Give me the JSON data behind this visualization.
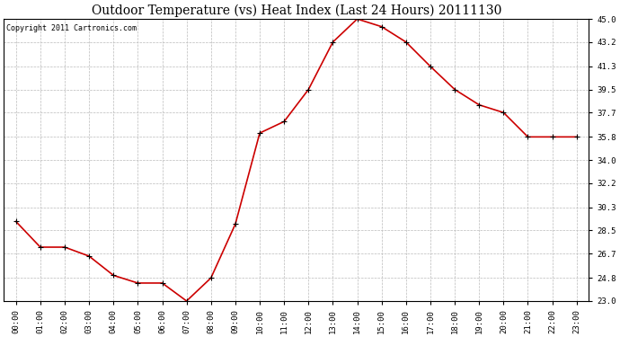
{
  "title": "Outdoor Temperature (vs) Heat Index (Last 24 Hours) 20111130",
  "copyright_text": "Copyright 2011 Cartronics.com",
  "line_color": "#cc0000",
  "marker_color": "#000000",
  "background_color": "#ffffff",
  "grid_color": "#bbbbbb",
  "x_labels": [
    "00:00",
    "01:00",
    "02:00",
    "03:00",
    "04:00",
    "05:00",
    "06:00",
    "07:00",
    "08:00",
    "09:00",
    "10:00",
    "11:00",
    "12:00",
    "13:00",
    "14:00",
    "15:00",
    "16:00",
    "17:00",
    "18:00",
    "19:00",
    "20:00",
    "21:00",
    "22:00",
    "23:00"
  ],
  "y_values": [
    29.2,
    27.2,
    27.2,
    26.5,
    25.0,
    24.4,
    24.4,
    23.0,
    24.8,
    29.0,
    36.1,
    37.0,
    39.5,
    43.2,
    45.0,
    44.4,
    43.2,
    41.3,
    39.5,
    38.3,
    37.7,
    35.8,
    35.8,
    35.8
  ],
  "ylim_min": 23.0,
  "ylim_max": 45.0,
  "yticks": [
    23.0,
    24.8,
    26.7,
    28.5,
    30.3,
    32.2,
    34.0,
    35.8,
    37.7,
    39.5,
    41.3,
    43.2,
    45.0
  ],
  "title_fontsize": 10,
  "copyright_fontsize": 6,
  "tick_fontsize": 6.5,
  "figwidth": 6.9,
  "figheight": 3.75,
  "dpi": 100
}
